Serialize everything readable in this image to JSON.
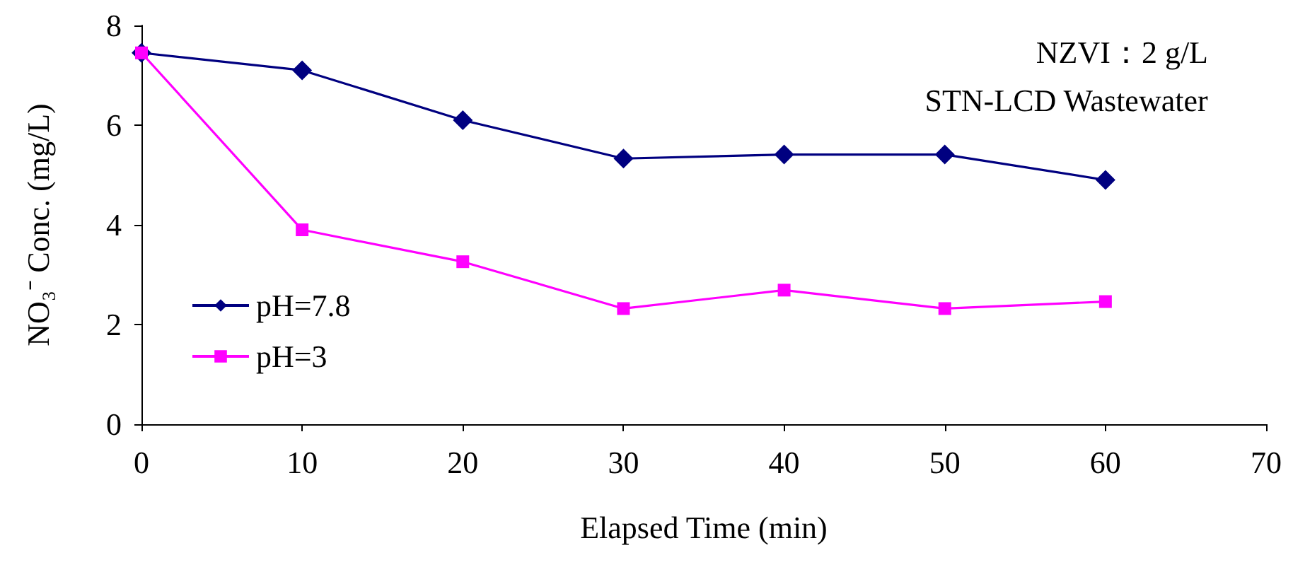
{
  "chart_data": {
    "type": "line",
    "xlabel": "Elapsed Time (min)",
    "ylabel": "NO₃⁻ Conc. (mg/L)",
    "x": [
      0,
      10,
      20,
      30,
      40,
      50,
      60
    ],
    "series": [
      {
        "name": "pH=7.8",
        "color": "#000080",
        "marker": "diamond",
        "values": [
          7.45,
          7.1,
          6.1,
          5.33,
          5.41,
          5.41,
          4.9
        ]
      },
      {
        "name": "pH=3",
        "color": "#ff00ff",
        "marker": "square",
        "values": [
          7.45,
          3.9,
          3.26,
          2.32,
          2.69,
          2.32,
          2.46
        ]
      }
    ],
    "xlim": [
      0,
      70
    ],
    "xticks": [
      0,
      10,
      20,
      30,
      40,
      50,
      60,
      70
    ],
    "ylim": [
      0,
      8
    ],
    "yticks": [
      0,
      2,
      4,
      6,
      8
    ],
    "grid": false,
    "legend": "left",
    "line_style": "solid",
    "annotations": [
      "NZVI：2 g/L",
      "STN-LCD Wastewater"
    ]
  }
}
